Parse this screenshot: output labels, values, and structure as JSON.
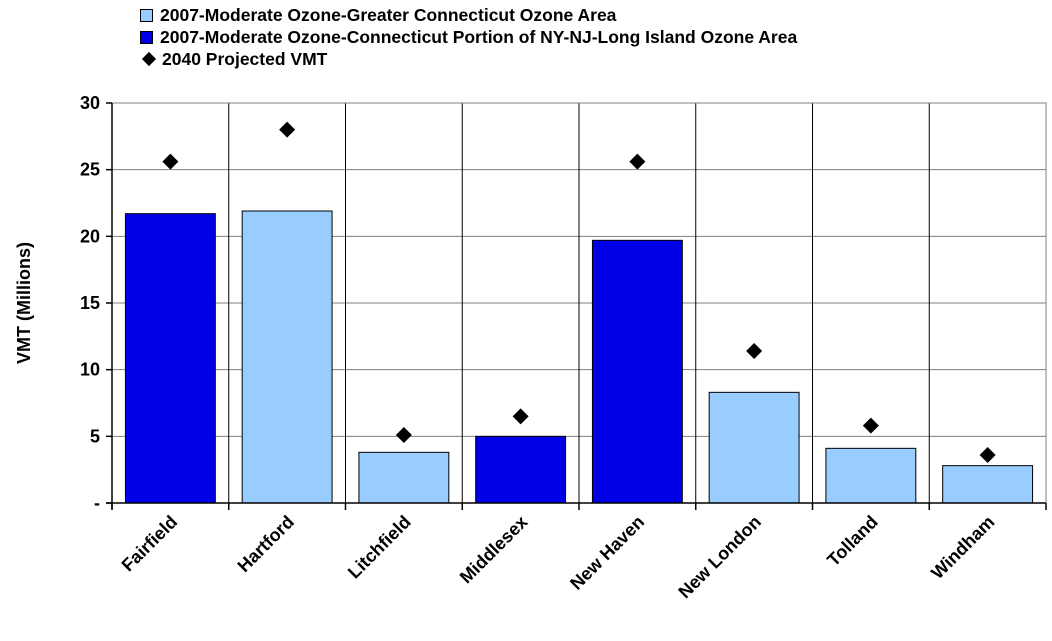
{
  "chart_data": {
    "type": "bar",
    "categories": [
      "Fairfield",
      "Hartford",
      "Litchfield",
      "Middlesex",
      "New Haven",
      "New London",
      "Tolland",
      "Windham"
    ],
    "bars": [
      21.7,
      21.9,
      3.8,
      5.0,
      19.7,
      8.3,
      4.1,
      2.8
    ],
    "bar_series": [
      "connecticut_portion_nynjli",
      "greater_connecticut",
      "greater_connecticut",
      "connecticut_portion_nynjli",
      "connecticut_portion_nynjli",
      "greater_connecticut",
      "greater_connecticut",
      "greater_connecticut"
    ],
    "series": [
      {
        "key": "greater_connecticut",
        "name": "2007-Moderate Ozone-Greater Connecticut Ozone Area",
        "color": "#99ccff"
      },
      {
        "key": "connecticut_portion_nynjli",
        "name": "2007-Moderate Ozone-Connecticut Portion of NY-NJ-Long Island Ozone Area",
        "color": "#0000e6"
      },
      {
        "key": "projected_2040",
        "name": "2040 Projected VMT",
        "color": "#000000",
        "marker": "diamond",
        "values": [
          25.6,
          28.0,
          5.1,
          6.5,
          25.6,
          11.4,
          5.8,
          3.6
        ]
      }
    ],
    "ylabel": "VMT (Millions)",
    "ylim": [
      0,
      30
    ],
    "yticks": [
      0,
      5,
      10,
      15,
      20,
      25,
      30
    ],
    "ytick_labels": [
      "-",
      "5",
      "10",
      "15",
      "20",
      "25",
      "30"
    ],
    "grid": true,
    "legend_position": "top"
  }
}
